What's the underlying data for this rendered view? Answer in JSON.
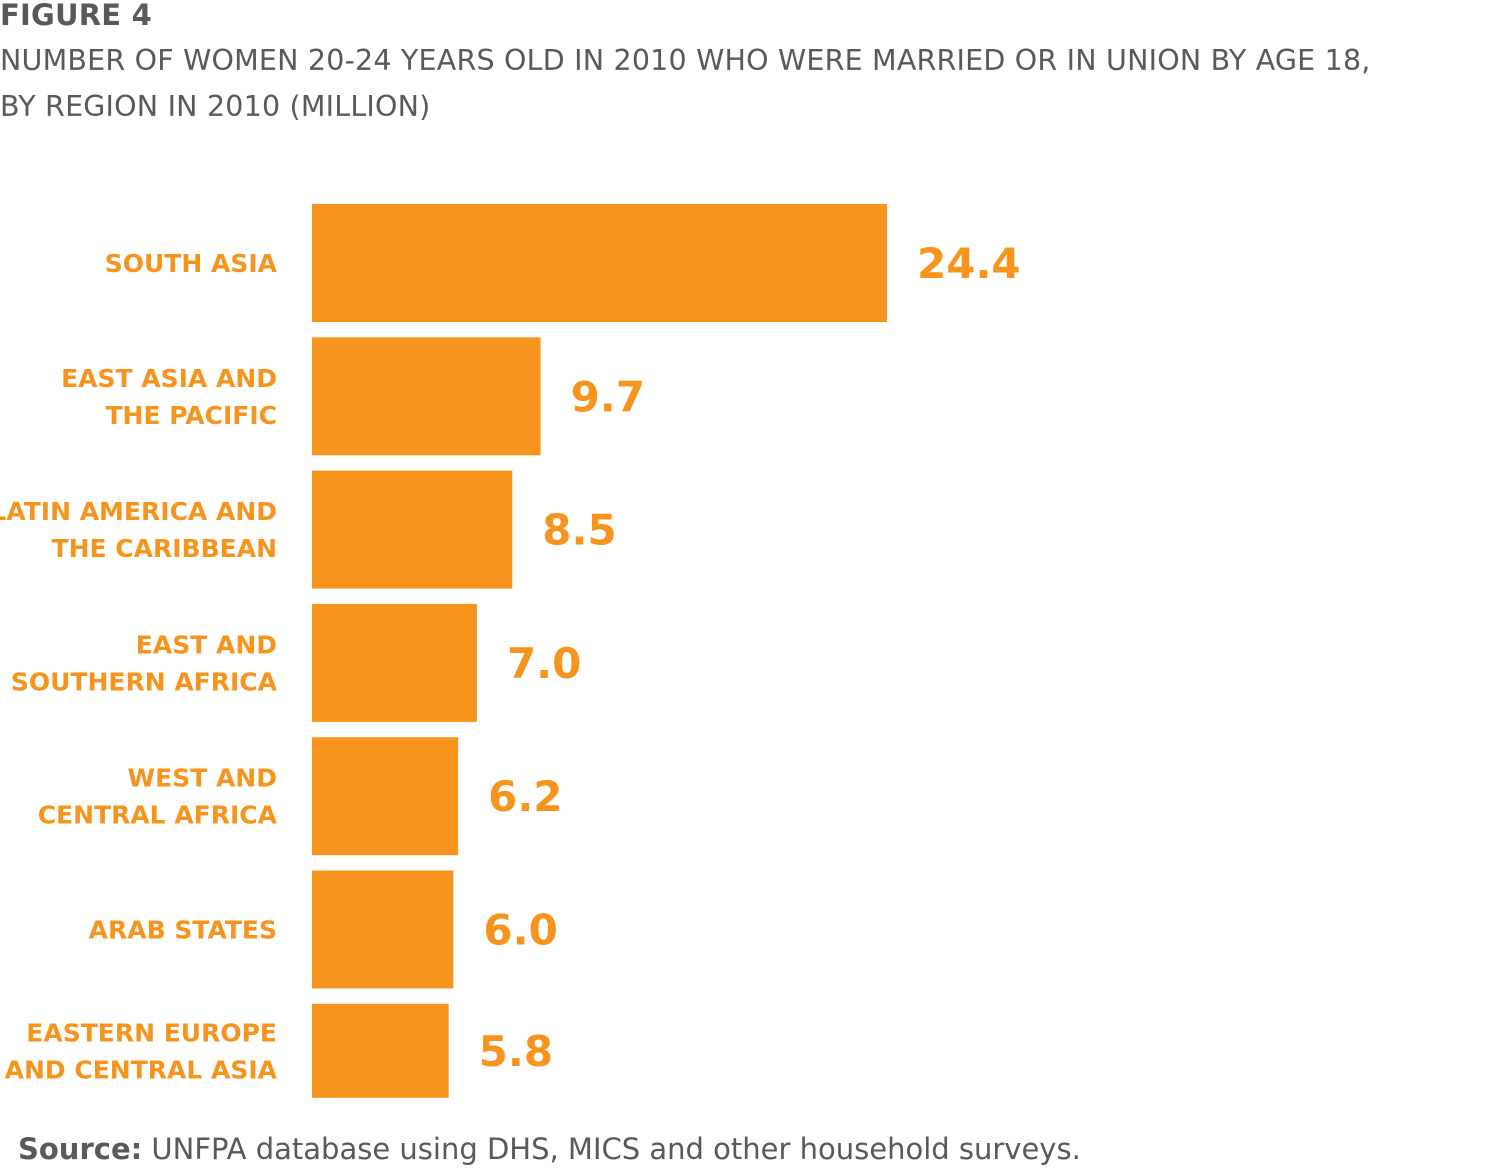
{
  "figure_label": "FIGURE 4",
  "title_line1": "NUMBER OF WOMEN 20-24 YEARS OLD IN 2010 WHO WERE MARRIED OR IN UNION BY AGE 18,",
  "title_line2": "BY REGION IN 2010 (MILLION)",
  "source_prefix": "Source:",
  "source_text": " UNFPA database using DHS, MICS and other household surveys.",
  "colors": {
    "bar": "#f7941d",
    "text": "#58595b"
  },
  "chart_data": {
    "type": "bar",
    "orientation": "horizontal",
    "title": "NUMBER OF WOMEN 20-24 YEARS OLD IN 2010 WHO WERE MARRIED OR IN UNION BY AGE 18, BY REGION IN 2010 (MILLION)",
    "categories": [
      [
        "SOUTH ASIA"
      ],
      [
        "EAST ASIA AND",
        "THE PACIFIC"
      ],
      [
        "LATIN AMERICA AND",
        "THE CARIBBEAN"
      ],
      [
        "EAST AND",
        "SOUTHERN AFRICA"
      ],
      [
        "WEST AND",
        "CENTRAL AFRICA"
      ],
      [
        "ARAB STATES"
      ],
      [
        "EASTERN EUROPE",
        "AND CENTRAL ASIA"
      ]
    ],
    "values": [
      24.4,
      9.7,
      8.5,
      7.0,
      6.2,
      6.0,
      5.8
    ],
    "value_labels": [
      "24.4",
      "9.7",
      "8.5",
      "7.0",
      "6.2",
      "6.0",
      "5.8"
    ],
    "grid": false,
    "axes_visible": false
  }
}
